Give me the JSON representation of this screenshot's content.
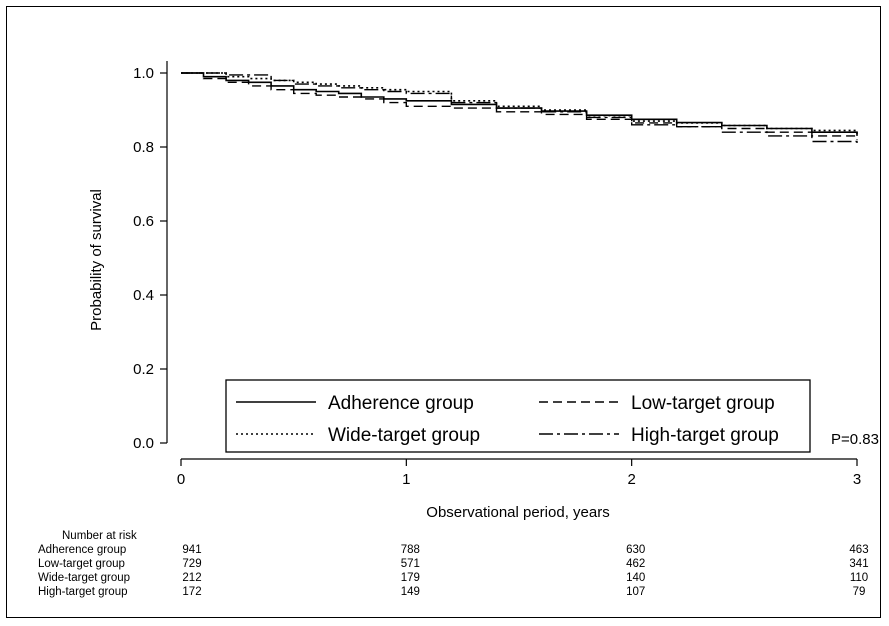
{
  "chart_data": {
    "type": "line",
    "title": "",
    "xlabel": "Observational period, years",
    "ylabel": "Probability of survival",
    "xlim": [
      0,
      3
    ],
    "ylim": [
      0,
      1
    ],
    "x_ticks": [
      "0",
      "1",
      "2",
      "3"
    ],
    "y_ticks": [
      "0.0",
      "0.2",
      "0.4",
      "0.6",
      "0.8",
      "1.0"
    ],
    "grid": false,
    "legend_placement": "bottom-center",
    "annotation": "P=0.83",
    "series": [
      {
        "name": "Adherence group",
        "line_style": "solid",
        "x": [
          0,
          0.1,
          0.2,
          0.3,
          0.4,
          0.5,
          0.6,
          0.7,
          0.8,
          0.9,
          1.0,
          1.2,
          1.4,
          1.6,
          1.8,
          2.0,
          2.2,
          2.4,
          2.6,
          2.8,
          3.0
        ],
        "y": [
          1.0,
          0.99,
          0.98,
          0.975,
          0.965,
          0.955,
          0.95,
          0.945,
          0.935,
          0.93,
          0.925,
          0.915,
          0.905,
          0.897,
          0.886,
          0.875,
          0.866,
          0.858,
          0.85,
          0.84,
          0.83
        ]
      },
      {
        "name": "Low-target group",
        "line_style": "dashed",
        "x": [
          0,
          0.1,
          0.2,
          0.3,
          0.4,
          0.5,
          0.6,
          0.7,
          0.8,
          0.9,
          1.0,
          1.2,
          1.4,
          1.6,
          1.8,
          2.0,
          2.2,
          2.4,
          2.6,
          2.8,
          3.0
        ],
        "y": [
          1.0,
          0.985,
          0.975,
          0.965,
          0.955,
          0.945,
          0.94,
          0.935,
          0.93,
          0.92,
          0.91,
          0.905,
          0.895,
          0.888,
          0.875,
          0.865,
          0.855,
          0.85,
          0.84,
          0.83,
          0.82
        ]
      },
      {
        "name": "Wide-target group",
        "line_style": "dotted",
        "x": [
          0,
          0.1,
          0.2,
          0.3,
          0.4,
          0.5,
          0.6,
          0.7,
          0.8,
          0.9,
          1.0,
          1.2,
          1.4,
          1.6,
          1.8,
          2.0,
          2.2,
          2.4,
          2.6,
          2.8,
          3.0
        ],
        "y": [
          1.0,
          1.0,
          0.99,
          0.985,
          0.98,
          0.975,
          0.97,
          0.965,
          0.96,
          0.955,
          0.95,
          0.925,
          0.91,
          0.9,
          0.885,
          0.87,
          0.865,
          0.858,
          0.85,
          0.845,
          0.835
        ]
      },
      {
        "name": "High-target group",
        "line_style": "dashdot",
        "x": [
          0,
          0.1,
          0.2,
          0.3,
          0.4,
          0.5,
          0.6,
          0.7,
          0.8,
          0.9,
          1.0,
          1.2,
          1.4,
          1.6,
          1.8,
          2.0,
          2.2,
          2.4,
          2.6,
          2.8,
          3.0
        ],
        "y": [
          1.0,
          1.0,
          0.995,
          0.995,
          0.98,
          0.97,
          0.965,
          0.96,
          0.955,
          0.95,
          0.945,
          0.92,
          0.905,
          0.895,
          0.88,
          0.86,
          0.855,
          0.84,
          0.83,
          0.815,
          0.81
        ]
      }
    ]
  },
  "risk_table": {
    "heading": "Number at risk",
    "rows": [
      {
        "label": "Adherence group",
        "values": [
          "941",
          "788",
          "630",
          "463"
        ]
      },
      {
        "label": "Low-target group",
        "values": [
          "729",
          "571",
          "462",
          "341"
        ]
      },
      {
        "label": "Wide-target group",
        "values": [
          "212",
          "179",
          "140",
          "110"
        ]
      },
      {
        "label": "High-target group",
        "values": [
          "172",
          "149",
          "107",
          "79"
        ]
      }
    ]
  }
}
